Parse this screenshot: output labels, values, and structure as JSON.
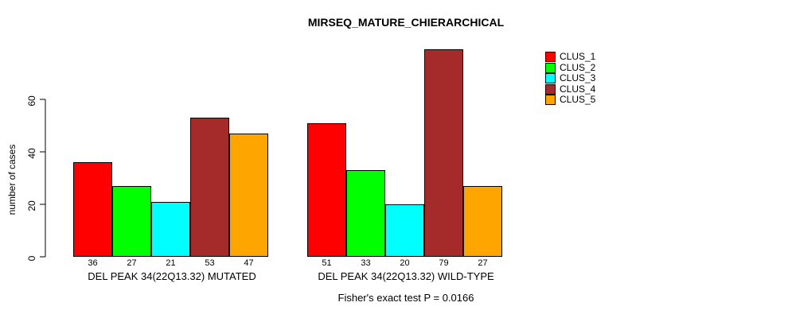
{
  "chart_data": {
    "type": "bar",
    "title": "MIRSEQ_MATURE_CHIERARCHICAL",
    "ylabel": "number of cases",
    "yticks": [
      0,
      20,
      40,
      60
    ],
    "ylim": [
      0,
      79
    ],
    "grid": false,
    "legend_position": "top-right",
    "categories": [
      "DEL PEAK 34(22Q13.32) MUTATED",
      "DEL PEAK 34(22Q13.32) WILD-TYPE"
    ],
    "series": [
      {
        "name": "CLUS_1",
        "color": "#FF0000",
        "values": [
          36,
          51
        ]
      },
      {
        "name": "CLUS_2",
        "color": "#00FF00",
        "values": [
          27,
          33
        ]
      },
      {
        "name": "CLUS_3",
        "color": "#00FFFF",
        "values": [
          21,
          20
        ]
      },
      {
        "name": "CLUS_4",
        "color": "#A52A2A",
        "values": [
          53,
          79
        ]
      },
      {
        "name": "CLUS_5",
        "color": "#FFA500",
        "values": [
          47,
          27
        ]
      }
    ],
    "bar_value_labels": [
      [
        36,
        27,
        21,
        53,
        47
      ],
      [
        51,
        33,
        20,
        79,
        27
      ]
    ],
    "footnote": "Fisher's exact test P = 0.0166",
    "axis_color": "#000000"
  }
}
